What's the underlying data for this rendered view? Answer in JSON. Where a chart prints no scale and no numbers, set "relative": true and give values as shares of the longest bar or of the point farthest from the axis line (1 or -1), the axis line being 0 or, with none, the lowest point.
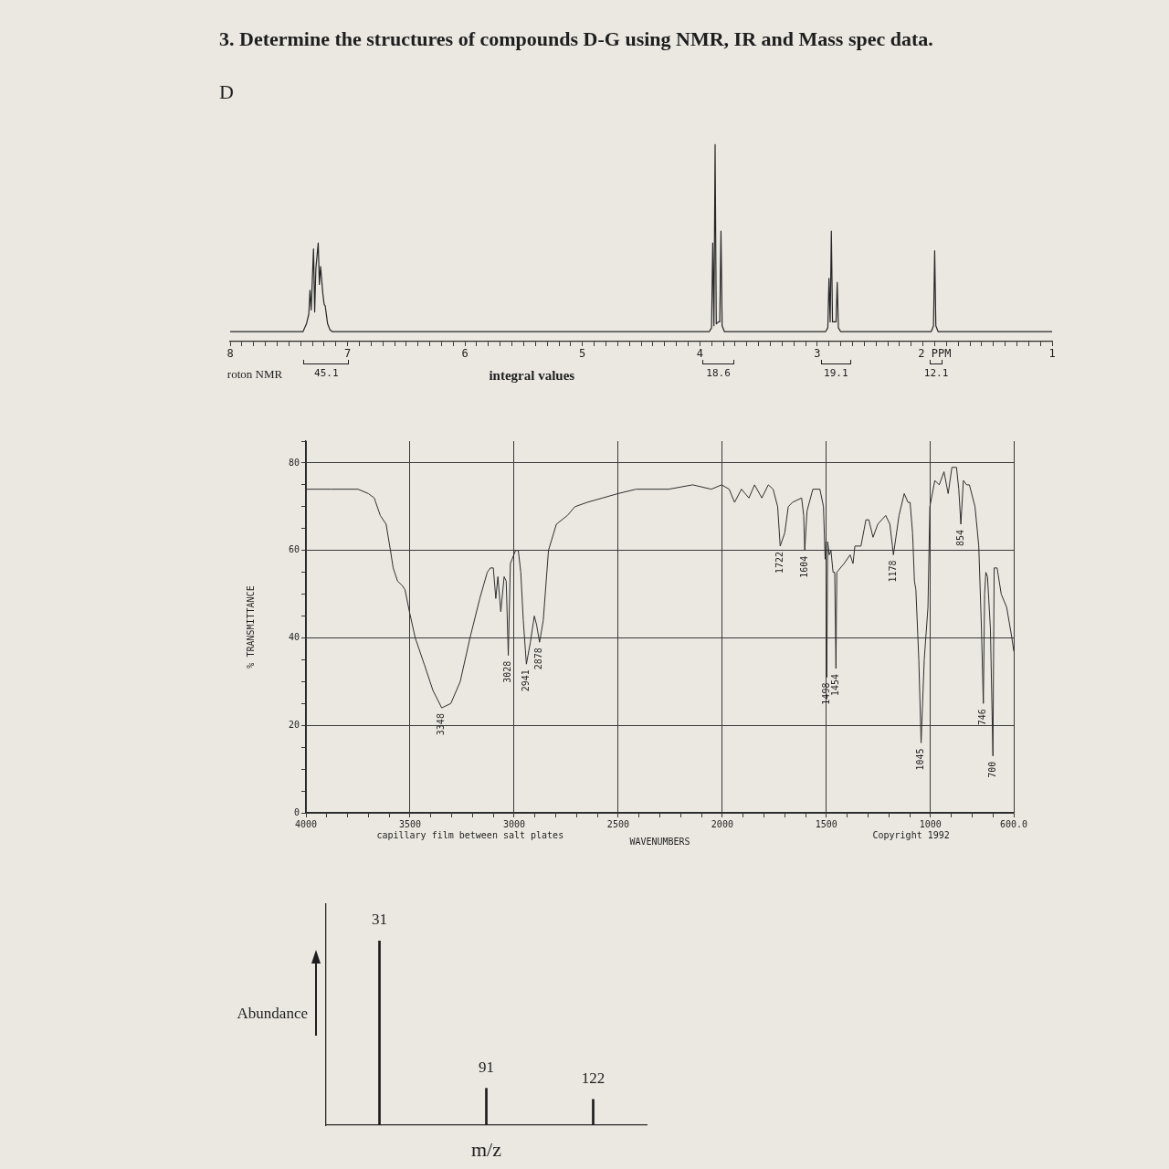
{
  "chart_data": [
    {
      "type": "line",
      "title": "3. Determine the structures of compounds D-G using NMR, IR and Mass spec data.",
      "subtitle": "D",
      "relative": true,
      "color": "#262626",
      "x": [
        8,
        7.5,
        7.38,
        7.35,
        7.33,
        7.32,
        7.31,
        7.29,
        7.28,
        7.27,
        7.25,
        7.24,
        7.23,
        7.21,
        7.2,
        7.19,
        7.17,
        7.15,
        7.13,
        6.5,
        5.5,
        4.5,
        3.92,
        3.9,
        3.89,
        3.88,
        3.87,
        3.86,
        3.84,
        3.83,
        3.82,
        3.81,
        3.79,
        3.5,
        2.93,
        2.91,
        2.9,
        2.89,
        2.88,
        2.87,
        2.84,
        2.83,
        2.82,
        2.8,
        2.5,
        2.03,
        2.01,
        2,
        1.99,
        1.97,
        1.5,
        1
      ],
      "values": [
        0.05,
        0.05,
        0.05,
        0.09,
        0.14,
        0.26,
        0.16,
        0.47,
        0.15,
        0.37,
        0.5,
        0.29,
        0.38,
        0.24,
        0.19,
        0.18,
        0.09,
        0.06,
        0.05,
        0.05,
        0.05,
        0.05,
        0.05,
        0.07,
        0.5,
        0.08,
        1,
        0.09,
        0.1,
        0.1,
        0.56,
        0.08,
        0.05,
        0.05,
        0.05,
        0.07,
        0.32,
        0.1,
        0.56,
        0.1,
        0.1,
        0.3,
        0.07,
        0.05,
        0.05,
        0.05,
        0.08,
        0.46,
        0.08,
        0.05,
        0.05,
        0.05
      ],
      "xlim": [
        8,
        1
      ],
      "xticks": [
        8,
        {
          "value": 7.9,
          "label": null
        },
        {
          "value": 7.8,
          "label": null
        },
        {
          "value": 7.7,
          "label": null
        },
        {
          "value": 7.6,
          "label": null
        },
        {
          "value": 7.5,
          "label": null
        },
        {
          "value": 7.4,
          "label": null
        },
        {
          "value": 7.3,
          "label": null
        },
        {
          "value": 7.2,
          "label": null
        },
        {
          "value": 7.1,
          "label": null
        },
        7,
        {
          "value": 6.9,
          "label": null
        },
        {
          "value": 6.8,
          "label": null
        },
        {
          "value": 6.7,
          "label": null
        },
        {
          "value": 6.6,
          "label": null
        },
        {
          "value": 6.5,
          "label": null
        },
        {
          "value": 6.4,
          "label": null
        },
        {
          "value": 6.3,
          "label": null
        },
        {
          "value": 6.2,
          "label": null
        },
        {
          "value": 6.1,
          "label": null
        },
        6,
        {
          "value": 5.9,
          "label": null
        },
        {
          "value": 5.8,
          "label": null
        },
        {
          "value": 5.7,
          "label": null
        },
        {
          "value": 5.6,
          "label": null
        },
        {
          "value": 5.5,
          "label": null
        },
        {
          "value": 5.4,
          "label": null
        },
        {
          "value": 5.3,
          "label": null
        },
        {
          "value": 5.2,
          "label": null
        },
        {
          "value": 5.1,
          "label": null
        },
        5,
        {
          "value": 4.9,
          "label": null
        },
        {
          "value": 4.8,
          "label": null
        },
        {
          "value": 4.7,
          "label": null
        },
        {
          "value": 4.6,
          "label": null
        },
        {
          "value": 4.5,
          "label": null
        },
        {
          "value": 4.4,
          "label": null
        },
        {
          "value": 4.3,
          "label": null
        },
        {
          "value": 4.2,
          "label": null
        },
        {
          "value": 4.1,
          "label": null
        },
        4,
        {
          "value": 3.9,
          "label": null
        },
        {
          "value": 3.8,
          "label": null
        },
        {
          "value": 3.7,
          "label": null
        },
        {
          "value": 3.6,
          "label": null
        },
        {
          "value": 3.5,
          "label": null
        },
        {
          "value": 3.4,
          "label": null
        },
        {
          "value": 3.3,
          "label": null
        },
        {
          "value": 3.2,
          "label": null
        },
        {
          "value": 3.1,
          "label": null
        },
        3,
        {
          "value": 2.9,
          "label": null
        },
        {
          "value": 2.8,
          "label": null
        },
        {
          "value": 2.7,
          "label": null
        },
        {
          "value": 2.6,
          "label": null
        },
        {
          "value": 2.5,
          "label": null
        },
        {
          "value": 2.4,
          "label": null
        },
        {
          "value": 2.3,
          "label": null
        },
        {
          "value": 2.2,
          "label": null
        },
        {
          "value": 2.1,
          "label": null
        },
        {
          "value": 2,
          "label": "2 PPM"
        },
        {
          "value": 1.9,
          "label": null
        },
        {
          "value": 1.8,
          "label": null
        },
        {
          "value": 1.7,
          "label": null
        },
        {
          "value": 1.6,
          "label": null
        },
        {
          "value": 1.5,
          "label": null
        },
        {
          "value": 1.4,
          "label": null
        },
        {
          "value": 1.3,
          "label": null
        },
        {
          "value": 1.2,
          "label": null
        },
        {
          "value": 1.1,
          "label": null
        },
        1
      ],
      "annotations": [
        "roton NMR",
        "45.1",
        "integral values",
        "18.6",
        "19.1",
        "12.1"
      ]
    },
    {
      "type": "line",
      "xlabel": "WAVENUMBERS",
      "ylabel": "% TRANSMITTANCE",
      "color": "#2e2e2e",
      "x": [
        4000,
        3880,
        3750,
        3700,
        3672,
        3643,
        3615,
        3594,
        3581,
        3560,
        3538,
        3524,
        3503,
        3475,
        3432,
        3390,
        3348,
        3304,
        3259,
        3212,
        3165,
        3129,
        3114,
        3100,
        3088,
        3078,
        3064,
        3048,
        3038,
        3028,
        3018,
        2993,
        2980,
        2968,
        2956,
        2941,
        2922,
        2903,
        2892,
        2878,
        2860,
        2835,
        2797,
        2744,
        2708,
        2649,
        2575,
        2501,
        2414,
        2258,
        2142,
        2053,
        2003,
        1967,
        1941,
        1908,
        1872,
        1845,
        1810,
        1779,
        1756,
        1734,
        1722,
        1700,
        1683,
        1663,
        1619,
        1609,
        1604,
        1593,
        1565,
        1531,
        1514,
        1506,
        1502,
        1498,
        1494,
        1486,
        1478,
        1468,
        1460,
        1454,
        1450,
        1415,
        1386,
        1372,
        1363,
        1334,
        1310,
        1296,
        1276,
        1253,
        1215,
        1195,
        1178,
        1151,
        1126,
        1108,
        1098,
        1086,
        1077,
        1070,
        1056,
        1045,
        1030,
        1012,
        1003,
        979,
        958,
        935,
        915,
        897,
        875,
        864,
        854,
        842,
        826,
        813,
        786,
        768,
        755,
        746,
        740,
        734,
        726,
        712,
        700,
        694,
        680,
        660,
        634,
        609,
        600
      ],
      "values": [
        74,
        74,
        74,
        73,
        72,
        68,
        66,
        60,
        56,
        53,
        52,
        51,
        46,
        40,
        34,
        28,
        24,
        25,
        30,
        40,
        49,
        55,
        56,
        56,
        49,
        54,
        46,
        54,
        53,
        36,
        57,
        60,
        60,
        55,
        44,
        34,
        39,
        45,
        43,
        39,
        44,
        60,
        66,
        68,
        70,
        71,
        72,
        73,
        74,
        74,
        75,
        74,
        75,
        74,
        71,
        74,
        72,
        75,
        72,
        75,
        74,
        70,
        61,
        64,
        70,
        71,
        72,
        68,
        60,
        69,
        74,
        74,
        70,
        58,
        62,
        31,
        62,
        59,
        60,
        55,
        55,
        33,
        55,
        57,
        59,
        57,
        61,
        61,
        67,
        67,
        63,
        66,
        68,
        66,
        59,
        68,
        73,
        71,
        71,
        64,
        53,
        51,
        35,
        16,
        35,
        47,
        70,
        76,
        75,
        78,
        73,
        79,
        79,
        74,
        66,
        76,
        75,
        75,
        70,
        61,
        42,
        25,
        50,
        55,
        54,
        42,
        13,
        56,
        56,
        50,
        47,
        40,
        37
      ],
      "xlim": [
        4000,
        600
      ],
      "ylim": [
        0,
        85
      ],
      "xticks": [
        4000,
        {
          "value": 3900,
          "label": null
        },
        {
          "value": 3800,
          "label": null
        },
        {
          "value": 3700,
          "label": null
        },
        {
          "value": 3600,
          "label": null
        },
        3500,
        {
          "value": 3400,
          "label": null
        },
        {
          "value": 3300,
          "label": null
        },
        {
          "value": 3200,
          "label": null
        },
        {
          "value": 3100,
          "label": null
        },
        3000,
        {
          "value": 2900,
          "label": null
        },
        {
          "value": 2800,
          "label": null
        },
        {
          "value": 2700,
          "label": null
        },
        {
          "value": 2600,
          "label": null
        },
        2500,
        {
          "value": 2400,
          "label": null
        },
        {
          "value": 2300,
          "label": null
        },
        {
          "value": 2200,
          "label": null
        },
        {
          "value": 2100,
          "label": null
        },
        2000,
        {
          "value": 1900,
          "label": null
        },
        {
          "value": 1800,
          "label": null
        },
        {
          "value": 1700,
          "label": null
        },
        {
          "value": 1600,
          "label": null
        },
        1500,
        {
          "value": 1400,
          "label": null
        },
        {
          "value": 1300,
          "label": null
        },
        {
          "value": 1200,
          "label": null
        },
        {
          "value": 1100,
          "label": null
        },
        1000,
        {
          "value": 900,
          "label": null
        },
        {
          "value": 800,
          "label": null
        },
        {
          "value": 700,
          "label": null
        },
        {
          "value": 600,
          "label": "600.0"
        }
      ],
      "yticks": [
        0,
        {
          "value": 5,
          "label": null
        },
        {
          "value": 10,
          "label": null
        },
        {
          "value": 15,
          "label": null
        },
        20,
        {
          "value": 25,
          "label": null
        },
        {
          "value": 30,
          "label": null
        },
        {
          "value": 35,
          "label": null
        },
        40,
        {
          "value": 45,
          "label": null
        },
        {
          "value": 50,
          "label": null
        },
        {
          "value": 55,
          "label": null
        },
        60,
        {
          "value": 65,
          "label": null
        },
        {
          "value": 70,
          "label": null
        },
        {
          "value": 75,
          "label": null
        },
        80,
        {
          "value": 85,
          "label": null
        }
      ],
      "grid": true,
      "annotations": [
        {
          "text": "3348",
          "x": 3348,
          "y": 24
        },
        {
          "text": "3028",
          "x": 3028,
          "y": 36
        },
        {
          "text": "2941",
          "x": 2941,
          "y": 34
        },
        {
          "text": "2878",
          "x": 2878,
          "y": 39
        },
        "capillary film between salt plates",
        {
          "text": "1722",
          "x": 1722,
          "y": 61
        },
        {
          "text": "1604",
          "x": 1604,
          "y": 60
        },
        {
          "text": "1498",
          "x": 1498,
          "y": 31
        },
        {
          "text": "1454",
          "x": 1454,
          "y": 33
        },
        {
          "text": "1178",
          "x": 1178,
          "y": 59
        },
        {
          "text": "1045",
          "x": 1045,
          "y": 16
        },
        "Copyright 1992",
        {
          "text": "854",
          "x": 854,
          "y": 66
        },
        {
          "text": "746",
          "x": 746,
          "y": 25
        },
        {
          "text": "700",
          "x": 700,
          "y": 13
        }
      ]
    },
    {
      "type": "bar",
      "xlabel": "m/z",
      "ylabel": "Abundance",
      "relative": true,
      "color": "#1c1c1c",
      "categories": [
        "31",
        "91",
        "122"
      ],
      "values": [
        1,
        0.2,
        0.14
      ]
    }
  ]
}
